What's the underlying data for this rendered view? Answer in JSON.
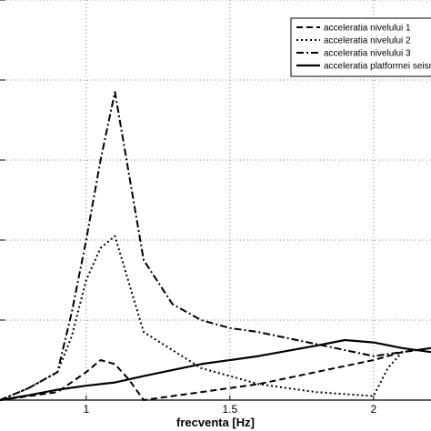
{
  "chart_data": {
    "type": "line",
    "title": "",
    "xlabel": "frecventa [Hz]",
    "ylabel": "",
    "xlim": [
      0.7,
      2.2
    ],
    "ylim": [
      0,
      5
    ],
    "grid": true,
    "legend_position": "top-right",
    "xticks": [
      1,
      1.5,
      2
    ],
    "xtick_labels": [
      "1",
      "1.5",
      "2"
    ],
    "yticks": [
      0,
      1,
      2,
      3,
      4,
      5
    ],
    "series": [
      {
        "name": "acceleratia nivelului 1",
        "style": "dash",
        "x": [
          0.7,
          0.8,
          0.9,
          1.0,
          1.05,
          1.1,
          1.15,
          1.2,
          1.4,
          1.6,
          1.8,
          2.0,
          2.1,
          2.2
        ],
        "y": [
          0.0,
          0.05,
          0.1,
          0.35,
          0.5,
          0.45,
          0.25,
          0.0,
          0.1,
          0.2,
          0.35,
          0.5,
          0.6,
          0.65
        ]
      },
      {
        "name": "acceleratia nivelului 2",
        "style": "dot",
        "x": [
          0.7,
          0.8,
          0.9,
          0.95,
          1.0,
          1.05,
          1.1,
          1.2,
          1.4,
          1.6,
          1.8,
          2.0,
          2.05,
          2.1,
          2.2
        ],
        "y": [
          0.0,
          0.15,
          0.35,
          0.8,
          1.5,
          1.9,
          2.05,
          0.85,
          0.4,
          0.2,
          0.1,
          0.05,
          0.4,
          0.6,
          0.65
        ]
      },
      {
        "name": "acceleratia nivelului 3",
        "style": "dashdot",
        "x": [
          0.7,
          0.8,
          0.9,
          0.95,
          1.0,
          1.05,
          1.1,
          1.2,
          1.3,
          1.4,
          1.5,
          1.6,
          1.8,
          2.0,
          2.1,
          2.2
        ],
        "y": [
          0.0,
          0.15,
          0.35,
          1.1,
          2.0,
          3.0,
          3.85,
          1.75,
          1.2,
          1.0,
          0.9,
          0.85,
          0.7,
          0.55,
          0.6,
          0.65
        ]
      },
      {
        "name": "acceleratia platformei seismice",
        "style": "solid",
        "x": [
          0.7,
          0.8,
          0.9,
          1.0,
          1.1,
          1.2,
          1.4,
          1.6,
          1.8,
          1.9,
          2.0,
          2.1,
          2.2
        ],
        "y": [
          0.0,
          0.06,
          0.13,
          0.18,
          0.22,
          0.3,
          0.45,
          0.55,
          0.68,
          0.75,
          0.72,
          0.65,
          0.6
        ]
      }
    ]
  }
}
